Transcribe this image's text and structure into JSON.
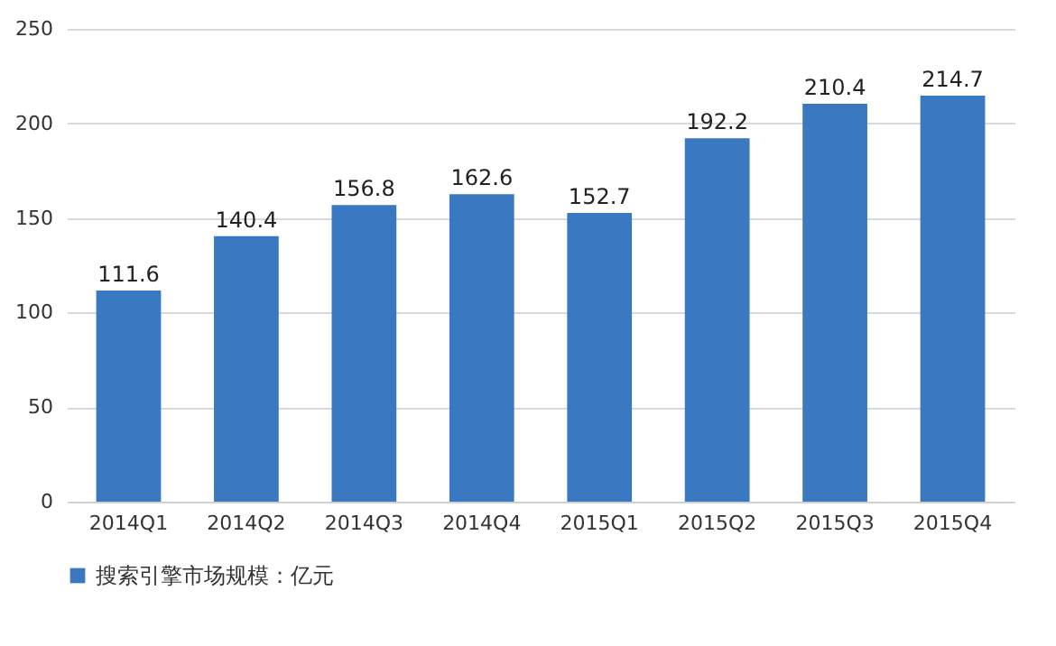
{
  "chart_data": {
    "type": "bar",
    "categories": [
      "2014Q1",
      "2014Q2",
      "2014Q3",
      "2014Q4",
      "2015Q1",
      "2015Q2",
      "2015Q3",
      "2015Q4"
    ],
    "series": [
      {
        "name": "搜索引擎市场规模：亿元",
        "color": "#3b78c2",
        "values": [
          111.6,
          140.4,
          156.8,
          162.6,
          152.7,
          192.2,
          210.4,
          214.7
        ]
      }
    ],
    "ylim": [
      0,
      250
    ],
    "yticks": [
      0,
      50,
      100,
      150,
      200,
      250
    ],
    "grid": "y",
    "legend": "bottom",
    "data_labels": true
  }
}
